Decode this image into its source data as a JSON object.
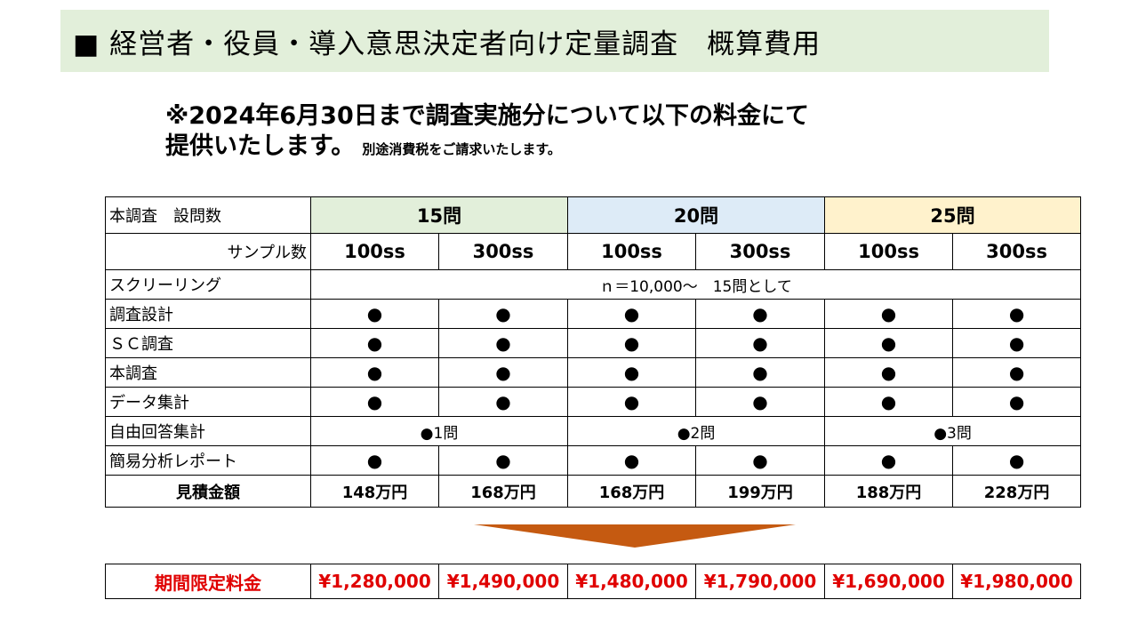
{
  "title": "■ 経営者・役員・導入意思決定者向け定量調査　概算費用",
  "notice": {
    "line1": "※2024年6月30日まで調査実施分について以下の料金にて",
    "line2": "提供いたします。",
    "tax_note": "別途消費税をご請求いたします。"
  },
  "colors": {
    "group15": "#e2efda",
    "group20": "#ddebf7",
    "group25": "#fff2cc",
    "arrow": "#c55a11",
    "promo_text": "#e00000"
  },
  "table": {
    "header_label": "本調査　設問数",
    "sample_label": "サンプル数",
    "groups": [
      "15問",
      "20問",
      "25問"
    ],
    "sample_sizes": [
      "100ss",
      "300ss",
      "100ss",
      "300ss",
      "100ss",
      "300ss"
    ],
    "screening": {
      "label": "スクリーリング",
      "value": "ｎ＝10,000～　15問として"
    },
    "dot_rows": [
      {
        "label": "調査設計",
        "marks": [
          "●",
          "●",
          "●",
          "●",
          "●",
          "●"
        ]
      },
      {
        "label": "ＳＣ調査",
        "marks": [
          "●",
          "●",
          "●",
          "●",
          "●",
          "●"
        ]
      },
      {
        "label": "本調査",
        "marks": [
          "●",
          "●",
          "●",
          "●",
          "●",
          "●"
        ]
      },
      {
        "label": "データ集計",
        "marks": [
          "●",
          "●",
          "●",
          "●",
          "●",
          "●"
        ]
      }
    ],
    "free_answer": {
      "label": "自由回答集計",
      "values": [
        "●1問",
        "●2問",
        "●3問"
      ]
    },
    "report": {
      "label": "簡易分析レポート",
      "marks": [
        "●",
        "●",
        "●",
        "●",
        "●",
        "●"
      ]
    },
    "estimate": {
      "label": "見積金額",
      "values": [
        "148万円",
        "168万円",
        "168万円",
        "199万円",
        "188万円",
        "228万円"
      ]
    }
  },
  "promo": {
    "label": "期間限定料金",
    "values": [
      "¥1,280,000",
      "¥1,490,000",
      "¥1,480,000",
      "¥1,790,000",
      "¥1,690,000",
      "¥1,980,000"
    ]
  }
}
